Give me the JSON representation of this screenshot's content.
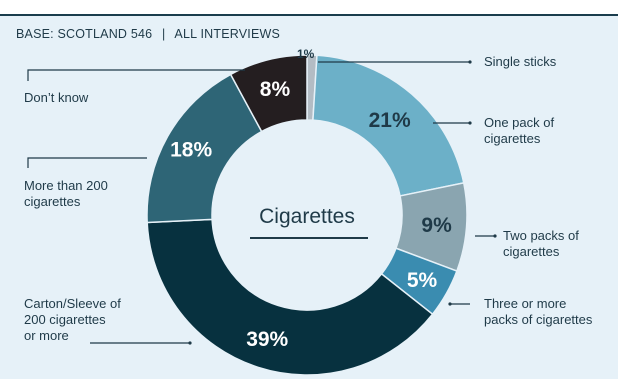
{
  "header": {
    "base_label": "BASE: SCOTLAND 546",
    "separator": "|",
    "scope_label": "ALL INTERVIEWS"
  },
  "chart_data": {
    "type": "pie",
    "donut": true,
    "center_label": "Cigarettes",
    "unit": "%",
    "slices": [
      {
        "label": [
          "Single sticks"
        ],
        "value": 1,
        "display": "1%",
        "color": "#b3bcc4",
        "text_color": "#1f3a48"
      },
      {
        "label": [
          "One pack of",
          "cigarettes"
        ],
        "value": 21,
        "display": "21%",
        "color": "#6cb0c8",
        "text_color": "#1f3a48"
      },
      {
        "label": [
          "Two packs of",
          "cigarettes"
        ],
        "value": 9,
        "display": "9%",
        "color": "#8aa5b0",
        "text_color": "#1f3a48"
      },
      {
        "label": [
          "Three or more",
          "packs of cigarettes"
        ],
        "value": 5,
        "display": "5%",
        "color": "#3a8cb0",
        "text_color": "#ffffff"
      },
      {
        "label": [
          "Carton/Sleeve of",
          "200 cigarettes",
          "or more"
        ],
        "value": 39,
        "display": "39%",
        "color": "#07313f",
        "text_color": "#ffffff"
      },
      {
        "label": [
          "More than 200",
          "cigarettes"
        ],
        "value": 18,
        "display": "18%",
        "color": "#2e6576",
        "text_color": "#ffffff"
      },
      {
        "label": [
          "Don’t know"
        ],
        "value": 8,
        "display": "8%",
        "color": "#241e20",
        "text_color": "#ffffff"
      }
    ]
  }
}
